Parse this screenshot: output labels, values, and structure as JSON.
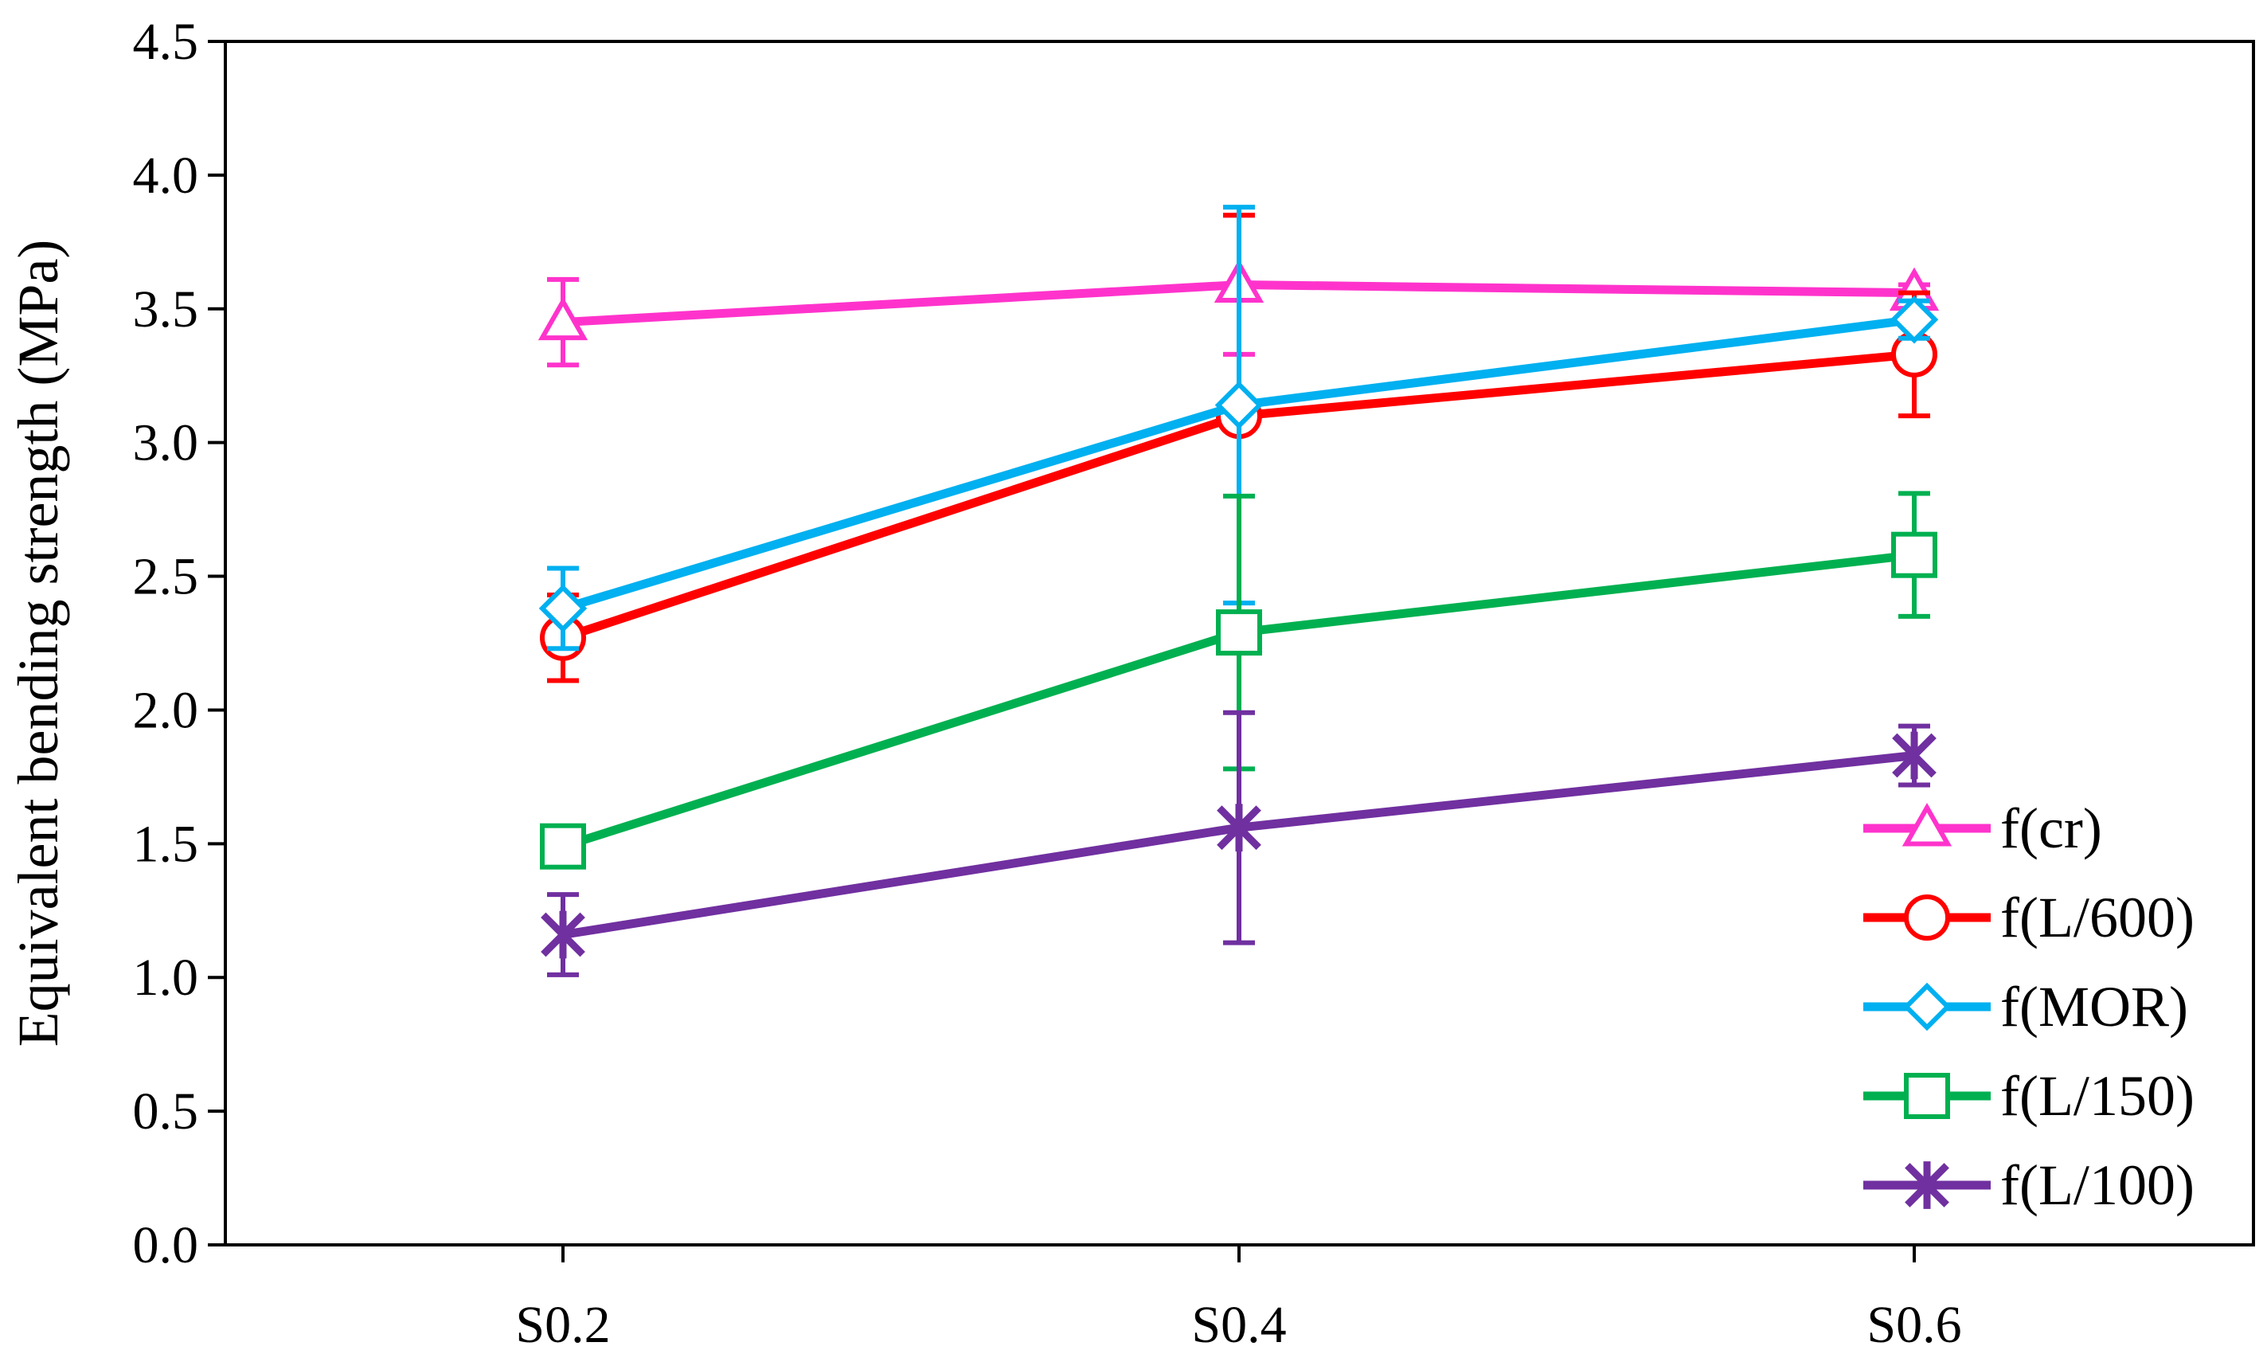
{
  "chart_data": {
    "type": "line",
    "title": "",
    "xlabel": "",
    "ylabel": "Equivalent bending strength (MPa)",
    "categories": [
      "S0.2",
      "S0.4",
      "S0.6"
    ],
    "ylim": [
      0.0,
      4.5
    ],
    "yticks": [
      "0.0",
      "0.5",
      "1.0",
      "1.5",
      "2.0",
      "2.5",
      "3.0",
      "3.5",
      "4.0",
      "4.5"
    ],
    "grid": false,
    "legend_position": "bottom-right",
    "series": [
      {
        "name": "f(cr)",
        "color": "#FF33CC",
        "marker": "triangle",
        "values": [
          3.45,
          3.59,
          3.56
        ],
        "error": [
          0.16,
          0.26,
          0.03
        ]
      },
      {
        "name": "f(L/600)",
        "color": "#FF0000",
        "marker": "circle",
        "values": [
          2.27,
          3.1,
          3.33
        ],
        "error": [
          0.16,
          0.75,
          0.23
        ]
      },
      {
        "name": "f(MOR)",
        "color": "#00B0F0",
        "marker": "diamond",
        "values": [
          2.38,
          3.14,
          3.46
        ],
        "error": [
          0.15,
          0.74,
          0.07
        ]
      },
      {
        "name": "f(L/150)",
        "color": "#00B050",
        "marker": "square",
        "values": [
          1.49,
          2.29,
          2.58
        ],
        "error": [
          0.04,
          0.51,
          0.23
        ]
      },
      {
        "name": "f(L/100)",
        "color": "#7030A0",
        "marker": "x",
        "values": [
          1.16,
          1.56,
          1.83
        ],
        "error": [
          0.15,
          0.43,
          0.11
        ]
      }
    ]
  }
}
